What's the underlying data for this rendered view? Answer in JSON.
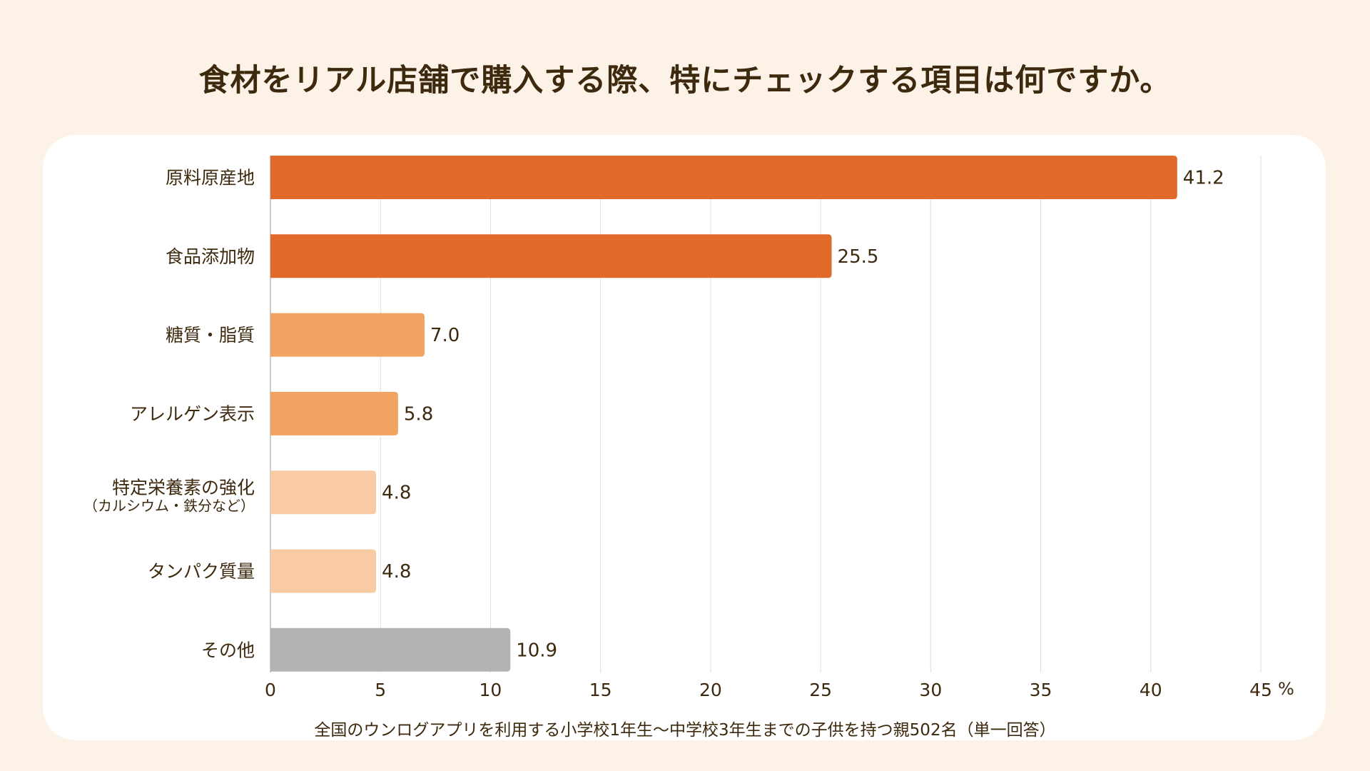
{
  "title": "食材をリアル店舗で購入する際、特にチェックする項目は何ですか。",
  "footnote": "全国のウンログアプリを利用する小学校1年生〜中学校3年生までの子供を持つ親502名（単一回答）",
  "colors": {
    "background": "#FDF2E7",
    "card": "#FFFFFF",
    "text": "#3D2A0E",
    "grid": "#DDDDDD",
    "bar_dark": "#E06A2A",
    "bar_mid": "#F2A261",
    "bar_light": "#F8CBA4",
    "bar_other": "#B3B3B3"
  },
  "chart_data": {
    "type": "bar",
    "orientation": "horizontal",
    "title": "食材をリアル店舗で購入する際、特にチェックする項目は何ですか。",
    "xlabel": "",
    "ylabel": "",
    "unit_label": "%",
    "xlim": [
      0,
      45
    ],
    "xticks": [
      0,
      5,
      10,
      15,
      20,
      25,
      30,
      35,
      40,
      45
    ],
    "xtick_labels": [
      "0",
      "5",
      "10",
      "15",
      "20",
      "25",
      "30",
      "35",
      "40",
      "45"
    ],
    "grid": true,
    "legend": "none",
    "categories": [
      {
        "label": "原料原産地",
        "sublabel": ""
      },
      {
        "label": "食品添加物",
        "sublabel": ""
      },
      {
        "label": "糖質・脂質",
        "sublabel": ""
      },
      {
        "label": "アレルゲン表示",
        "sublabel": ""
      },
      {
        "label": "特定栄養素の強化",
        "sublabel": "（カルシウム・鉄分など）"
      },
      {
        "label": "タンパク質量",
        "sublabel": ""
      },
      {
        "label": "その他",
        "sublabel": ""
      }
    ],
    "values": [
      41.2,
      25.5,
      7.0,
      5.8,
      4.8,
      4.8,
      10.9
    ],
    "value_labels": [
      "41.2",
      "25.5",
      "7.0",
      "5.8",
      "4.8",
      "4.8",
      "10.9"
    ],
    "bar_color_keys": [
      "bar_dark",
      "bar_dark",
      "bar_mid",
      "bar_mid",
      "bar_light",
      "bar_light",
      "bar_other"
    ]
  }
}
